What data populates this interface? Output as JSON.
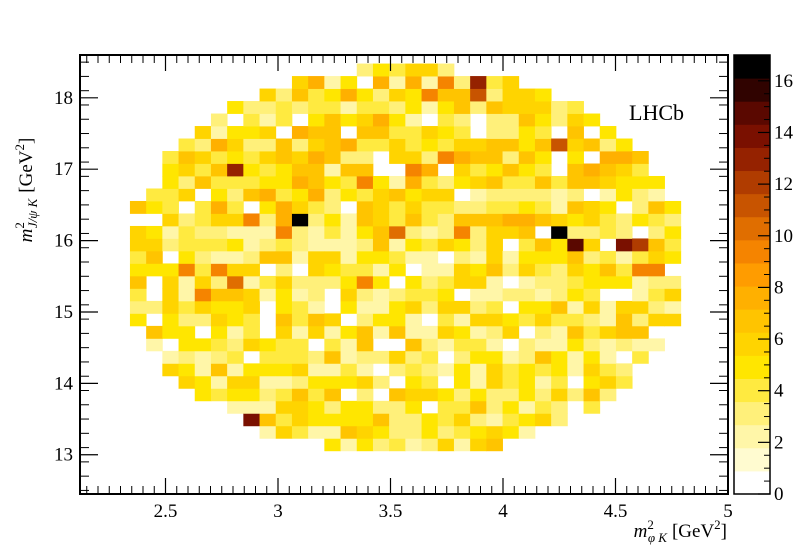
{
  "chart_data": {
    "type": "heatmap",
    "title": "",
    "annotation": "LHCb",
    "xlabel": {
      "base": "m",
      "sup": "2",
      "sub": "φ K",
      "unit": "[GeV",
      "unit_sup": "2",
      "unit_close": "]"
    },
    "ylabel": {
      "base": "m",
      "sup": "2",
      "sub": "J/ψ K",
      "unit": "[GeV",
      "unit_sup": "2",
      "unit_close": "]"
    },
    "xlim": [
      2.12,
      5.0
    ],
    "ylim": [
      12.45,
      18.6
    ],
    "xticks": [
      "2.5",
      "3",
      "3.5",
      "4",
      "4.5",
      "5"
    ],
    "xtick_values": [
      2.5,
      3.0,
      3.5,
      4.0,
      4.5,
      5.0
    ],
    "yticks": [
      "13",
      "14",
      "15",
      "16",
      "17",
      "18"
    ],
    "ytick_values": [
      13,
      14,
      15,
      16,
      17,
      18
    ],
    "colorbar": {
      "min": 0,
      "max": 17,
      "ticks": [
        "0",
        "2",
        "4",
        "6",
        "8",
        "10",
        "12",
        "14",
        "16"
      ],
      "tick_values": [
        0,
        2,
        4,
        6,
        8,
        10,
        12,
        14,
        16
      ],
      "colors": [
        "#ffffff",
        "#fffbd0",
        "#fff6a8",
        "#fff07a",
        "#ffea40",
        "#ffe600",
        "#ffd400",
        "#ffc400",
        "#ffb000",
        "#ff9c00",
        "#f58400",
        "#e06e00",
        "#c85400",
        "#b03c00",
        "#952200",
        "#7a1000",
        "#5a0800",
        "#300300",
        "#000000"
      ]
    },
    "bin_width_x": 0.072,
    "bin_width_y": 0.175,
    "x_domain": [
      2.27,
      4.78
    ],
    "y_domain": [
      12.88,
      18.35
    ],
    "hot_bins": [
      {
        "x": 3.08,
        "y": 16.19,
        "value": 17
      },
      {
        "x": 4.23,
        "y": 16.05,
        "value": 17
      },
      {
        "x": 4.3,
        "y": 15.92,
        "value": 15
      },
      {
        "x": 4.53,
        "y": 15.77,
        "value": 14
      },
      {
        "x": 4.59,
        "y": 15.77,
        "value": 12
      },
      {
        "x": 2.79,
        "y": 16.97,
        "value": 13
      },
      {
        "x": 2.87,
        "y": 13.47,
        "value": 14
      },
      {
        "x": 3.87,
        "y": 18.1,
        "value": 13
      },
      {
        "x": 3.87,
        "y": 17.93,
        "value": 11
      },
      {
        "x": 4.21,
        "y": 17.25,
        "value": 11
      },
      {
        "x": 2.79,
        "y": 15.3,
        "value": 10
      },
      {
        "x": 2.73,
        "y": 15.48,
        "value": 9
      },
      {
        "x": 2.59,
        "y": 15.48,
        "value": 9
      },
      {
        "x": 2.65,
        "y": 15.13,
        "value": 9
      },
      {
        "x": 3.51,
        "y": 16.0,
        "value": 10
      },
      {
        "x": 3.37,
        "y": 16.75,
        "value": 9
      },
      {
        "x": 3.58,
        "y": 16.85,
        "value": 9
      },
      {
        "x": 3.01,
        "y": 16.0,
        "value": 9
      },
      {
        "x": 2.87,
        "y": 16.2,
        "value": 9
      },
      {
        "x": 3.37,
        "y": 15.3,
        "value": 9
      },
      {
        "x": 3.8,
        "y": 16.1,
        "value": 9
      },
      {
        "x": 3.73,
        "y": 17.1,
        "value": 9
      },
      {
        "x": 3.65,
        "y": 17.93,
        "value": 9
      },
      {
        "x": 3.73,
        "y": 18.1,
        "value": 9
      },
      {
        "x": 4.59,
        "y": 15.59,
        "value": 9
      },
      {
        "x": 4.66,
        "y": 15.59,
        "value": 9
      },
      {
        "x": 2.79,
        "y": 13.3,
        "value": 9
      },
      {
        "x": 3.15,
        "y": 16.56,
        "value": 8
      },
      {
        "x": 4.01,
        "y": 16.2,
        "value": 8
      },
      {
        "x": 4.44,
        "y": 17.1,
        "value": 8
      }
    ]
  }
}
